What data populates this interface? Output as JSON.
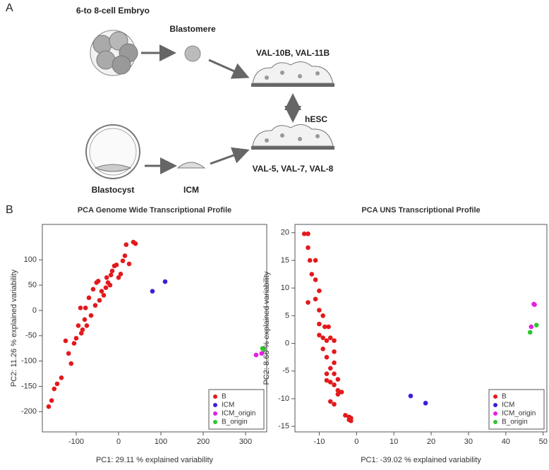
{
  "panel_a": {
    "label": "A",
    "embryo": "6-to 8-cell Embryo",
    "blastomere": "Blastomere",
    "lines_top": "VAL-10B, VAL-11B",
    "hesc": "hESC",
    "blastocyst": "Blastocyst",
    "icm": "ICM",
    "lines_bottom": "VAL-5, VAL-7, VAL-8"
  },
  "panel_b": {
    "label": "B"
  },
  "chart_data": [
    {
      "type": "scatter",
      "title": "PCA Genome Wide Transcriptional Profile",
      "x_label": "PC1:  29.11 % explained variability",
      "y_label": "PC2:  11.26 % explained variability",
      "xlim": [
        -180,
        350
      ],
      "ylim": [
        -240,
        170
      ],
      "xticks": [
        -100,
        0,
        100,
        200,
        300
      ],
      "yticks": [
        -200,
        -150,
        -100,
        -50,
        0,
        50,
        100
      ],
      "legend": "bottom-right",
      "series": [
        {
          "name": "B",
          "color": "#e3191c",
          "x": [
            -165,
            -158,
            -152,
            -145,
            -135,
            -125,
            -118,
            -112,
            -105,
            -100,
            -95,
            -90,
            -88,
            -85,
            -80,
            -78,
            -75,
            -70,
            -65,
            -60,
            -55,
            -52,
            -48,
            -45,
            -40,
            -35,
            -30,
            -28,
            -25,
            -20,
            -18,
            -15,
            -10,
            -5,
            0,
            5,
            10,
            15,
            18,
            25,
            35,
            40
          ],
          "y": [
            -190,
            -178,
            -155,
            -145,
            -133,
            -60,
            -85,
            -105,
            -65,
            -55,
            -30,
            5,
            -45,
            -38,
            -18,
            5,
            -30,
            25,
            -10,
            42,
            10,
            55,
            58,
            20,
            38,
            30,
            45,
            65,
            55,
            50,
            70,
            78,
            88,
            90,
            65,
            72,
            98,
            108,
            130,
            92,
            135,
            132
          ]
        },
        {
          "name": "ICM",
          "color": "#3b1fd8",
          "x": [
            80,
            110
          ],
          "y": [
            38,
            57
          ]
        },
        {
          "name": "ICM_origin",
          "color": "#e41fe4",
          "x": [
            325,
            338
          ],
          "y": [
            -88,
            -85
          ]
        },
        {
          "name": "B_origin",
          "color": "#2fc52f",
          "x": [
            340,
            343
          ],
          "y": [
            -75,
            -77
          ]
        }
      ]
    },
    {
      "type": "scatter",
      "title": "PCA UNS Transcriptional Profile",
      "x_label": "PC1:  -39.02 % explained variability",
      "y_label": "PC2:  8.66 % explained variability",
      "xlim": [
        -16.5,
        51
      ],
      "ylim": [
        -16,
        21.5
      ],
      "xticks": [
        -10,
        0,
        10,
        20,
        30,
        40,
        50
      ],
      "yticks": [
        -15,
        -10,
        -5,
        0,
        5,
        10,
        15,
        20
      ],
      "legend": "bottom-right",
      "series": [
        {
          "name": "B",
          "color": "#e3191c",
          "x": [
            -14,
            -13,
            -13,
            -12.5,
            -11,
            -12,
            -11,
            -10,
            -11,
            -13,
            -10,
            -9,
            -10,
            -8.5,
            -7.5,
            -10,
            -9,
            -8,
            -7,
            -6,
            -9,
            -6,
            -8,
            -6,
            -7,
            -8,
            -6,
            -7,
            -8,
            -5,
            -6,
            -5,
            -4,
            -5,
            -7,
            -6,
            -3,
            -2,
            -1.5,
            -1.5,
            -2
          ],
          "y": [
            19.8,
            19.8,
            17.3,
            15,
            15,
            12.5,
            11.5,
            9.5,
            8,
            7.4,
            6,
            5,
            3.5,
            3,
            3,
            1.5,
            1,
            0.5,
            1,
            0.5,
            -1,
            -1.5,
            -2.5,
            -3.5,
            -4.5,
            -5.5,
            -5.5,
            -7,
            -6.7,
            -6.5,
            -7.5,
            -8.5,
            -8.8,
            -9.2,
            -10.5,
            -11,
            -13,
            -13.3,
            -13.5,
            -14,
            -13.8
          ]
        },
        {
          "name": "ICM",
          "color": "#3b1fd8",
          "x": [
            14.5,
            18.5
          ],
          "y": [
            -9.5,
            -10.8
          ]
        },
        {
          "name": "ICM_origin",
          "color": "#e41fe4",
          "x": [
            47.5,
            47.7,
            46.8
          ],
          "y": [
            7.1,
            7,
            3
          ]
        },
        {
          "name": "B_origin",
          "color": "#2fc52f",
          "x": [
            48.2,
            46.5
          ],
          "y": [
            3.3,
            2
          ]
        }
      ]
    }
  ]
}
